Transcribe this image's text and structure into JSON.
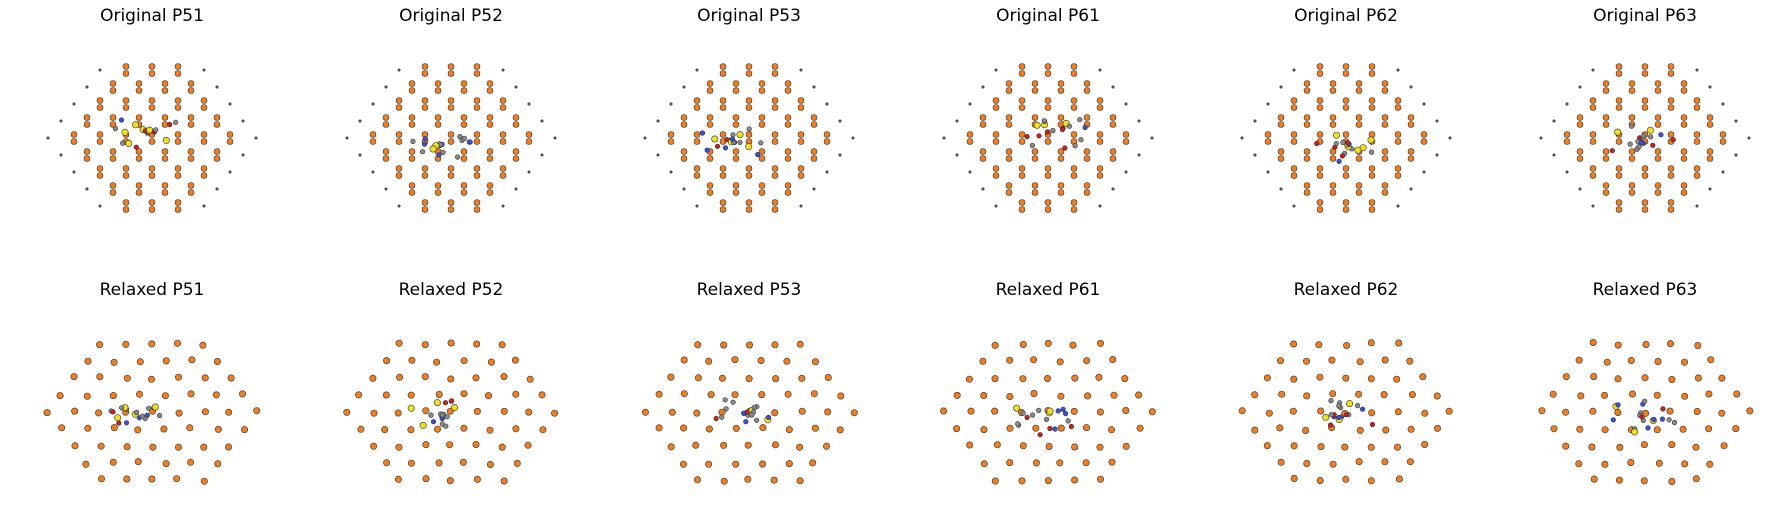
{
  "figure": {
    "panels": [
      {
        "title": "Original P51",
        "state": "original",
        "seed": 51
      },
      {
        "title": "Original P52",
        "state": "original",
        "seed": 52
      },
      {
        "title": "Original P53",
        "state": "original",
        "seed": 53
      },
      {
        "title": "Original P61",
        "state": "original",
        "seed": 61
      },
      {
        "title": "Original P62",
        "state": "original",
        "seed": 62
      },
      {
        "title": "Original P63",
        "state": "original",
        "seed": 63
      },
      {
        "title": "Relaxed P51",
        "state": "relaxed",
        "seed": 51
      },
      {
        "title": "Relaxed P52",
        "state": "relaxed",
        "seed": 52
      },
      {
        "title": "Relaxed P53",
        "state": "relaxed",
        "seed": 53
      },
      {
        "title": "Relaxed P61",
        "state": "relaxed",
        "seed": 61
      },
      {
        "title": "Relaxed P62",
        "state": "relaxed",
        "seed": 62
      },
      {
        "title": "Relaxed P63",
        "state": "relaxed",
        "seed": 63
      }
    ],
    "colors": {
      "host_atom": "#f07d1e",
      "edge": "#333333",
      "defect_grey": "#8a8a8a",
      "defect_blue": "#3a4fd8",
      "defect_red": "#c82020",
      "defect_yellow": "#f0e020",
      "small_site": "#666666"
    }
  }
}
